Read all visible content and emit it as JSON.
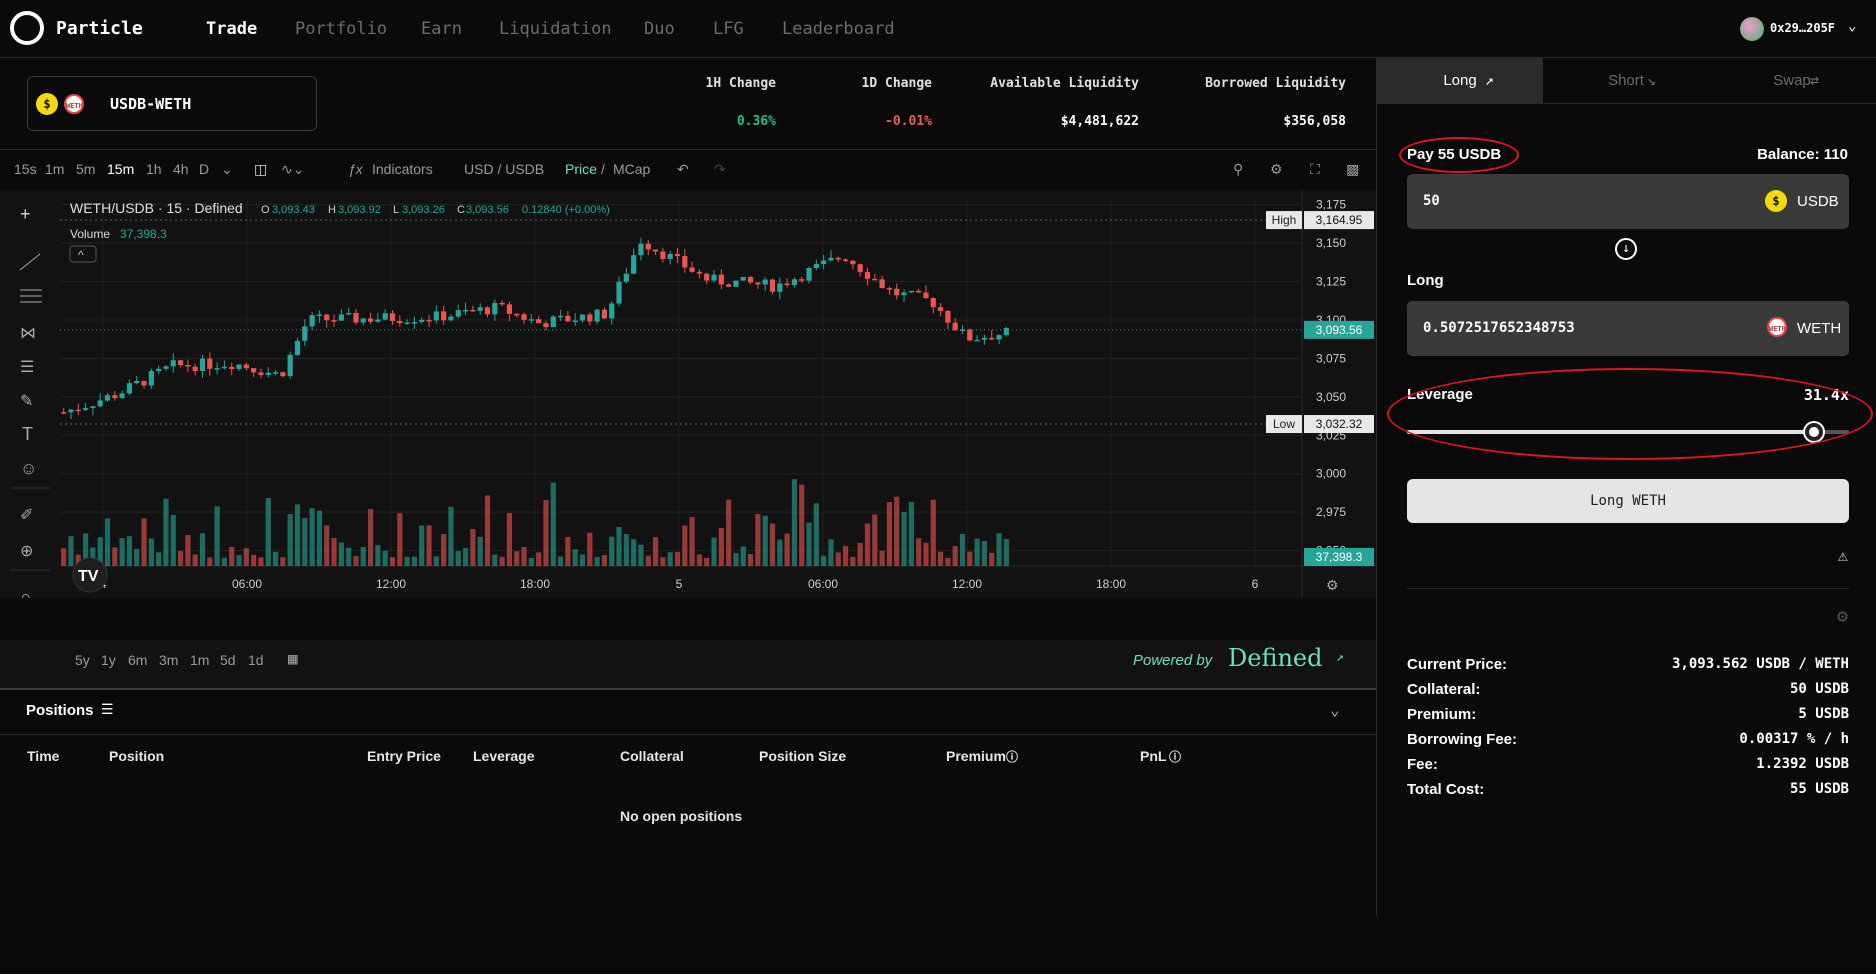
{
  "nav": {
    "brand": "Particle",
    "links": [
      "Trade",
      "Portfolio",
      "Earn",
      "Liquidation",
      "Duo",
      "LFG",
      "Leaderboard"
    ],
    "address": "0x29…205F"
  },
  "pair": {
    "name": "USDB-WETH"
  },
  "stats": [
    {
      "label": "1H Change",
      "value": "0.36%"
    },
    {
      "label": "1D Change",
      "value": "-0.01%"
    },
    {
      "label": "Available Liquidity",
      "value": "$4,481,622"
    },
    {
      "label": "Borrowed Liquidity",
      "value": "$356,058"
    }
  ],
  "toolbar": {
    "intervals": [
      "15s",
      "1m",
      "5m",
      "15m",
      "1h",
      "4h",
      "D"
    ],
    "indicators": "Indicators",
    "currency": "USD / USDB",
    "price": "Price",
    "mcap": "MCap"
  },
  "chart_header": {
    "title": "WETH/USDB · 15 · Defined",
    "o": "3,093.43",
    "h": "3,093.92",
    "l": "3,093.26",
    "c": "3,093.56",
    "chg": "0.12840 (+0.00%)",
    "volume_label": "Volume",
    "volume_value": "37,398.3"
  },
  "chart_data": {
    "type": "candlestick",
    "y_ticks": [
      "3,175",
      "3,150",
      "3,125",
      "3,100",
      "3,075",
      "3,050",
      "3,025",
      "3,000",
      "2,975",
      "2,950"
    ],
    "x_ticks": [
      "4",
      "06:00",
      "12:00",
      "18:00",
      "5",
      "06:00",
      "12:00",
      "18:00",
      "6"
    ],
    "high_label": "High",
    "high": "3,164.95",
    "low_label": "Low",
    "low": "3,032.32",
    "last": "3,093.56",
    "last_volume": "37,398.3",
    "ylim": [
      2940,
      3178
    ]
  },
  "range_buttons": [
    "5y",
    "1y",
    "6m",
    "3m",
    "1m",
    "5d",
    "1d"
  ],
  "powered": {
    "text": "Powered by",
    "brand": "Defined"
  },
  "positions": {
    "title": "Positions",
    "columns": [
      "Time",
      "Position",
      "Entry Price",
      "Leverage",
      "Collateral",
      "Position Size",
      "Premium",
      "PnL"
    ],
    "empty": "No open positions"
  },
  "trade": {
    "tabs": [
      "Long",
      "Short",
      "Swap"
    ],
    "pay_label": "Pay 55 USDB",
    "balance": "Balance: 110",
    "pay_value": "50",
    "pay_token": "USDB",
    "long_label": "Long",
    "long_value": "0.5072517652348753",
    "long_token": "WETH",
    "leverage_label": "Leverage",
    "leverage_value": "31.4x",
    "leverage_fraction": 0.92,
    "button": "Long WETH",
    "summary": [
      {
        "label": "Current Price:",
        "value": "3,093.562 USDB / WETH"
      },
      {
        "label": "Collateral:",
        "value": "50 USDB"
      },
      {
        "label": "Premium:",
        "value": "5 USDB"
      },
      {
        "label": "Borrowing Fee:",
        "value": "0.00317 % / h"
      },
      {
        "label": "Fee:",
        "value": "1.2392 USDB"
      },
      {
        "label": "Total Cost:",
        "value": "55 USDB"
      }
    ]
  },
  "colors": {
    "up": "#26a69a",
    "down": "#ef5350",
    "green_text": "#26c281",
    "red_text": "#f25a5a",
    "annotation": "#e0141e"
  }
}
